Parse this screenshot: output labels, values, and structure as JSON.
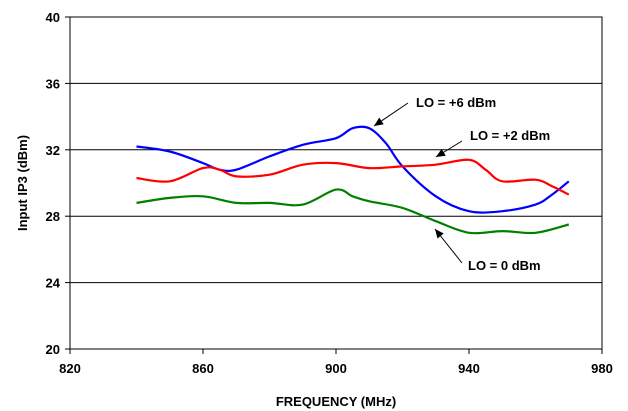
{
  "chart_data": {
    "type": "line",
    "xlabel": "FREQUENCY (MHz)",
    "ylabel": "Input IP3 (dBm)",
    "xlim": [
      820,
      980
    ],
    "ylim": [
      20,
      40
    ],
    "x_ticks": [
      "820",
      "860",
      "900",
      "940",
      "980"
    ],
    "y_ticks": [
      "20",
      "24",
      "28",
      "32",
      "36",
      "40"
    ],
    "grid": "horizontal",
    "series": [
      {
        "name": "LO = +6 dBm",
        "color": "#0000ff",
        "x": [
          840,
          850,
          860,
          865,
          870,
          880,
          890,
          900,
          905,
          910,
          915,
          920,
          930,
          940,
          950,
          960,
          965,
          970
        ],
        "y": [
          32.2,
          31.9,
          31.2,
          30.8,
          30.8,
          31.6,
          32.3,
          32.7,
          33.3,
          33.3,
          32.4,
          31.0,
          29.2,
          28.3,
          28.3,
          28.7,
          29.3,
          30.1
        ]
      },
      {
        "name": "LO = +2 dBm",
        "color": "#ff0000",
        "x": [
          840,
          850,
          860,
          865,
          870,
          880,
          890,
          900,
          910,
          920,
          930,
          940,
          945,
          950,
          960,
          965,
          970
        ],
        "y": [
          30.3,
          30.1,
          30.9,
          30.8,
          30.4,
          30.5,
          31.1,
          31.2,
          30.9,
          31.0,
          31.1,
          31.4,
          30.8,
          30.1,
          30.2,
          29.8,
          29.3
        ]
      },
      {
        "name": "LO = 0 dBm",
        "color": "#008000",
        "x": [
          840,
          850,
          860,
          870,
          880,
          890,
          900,
          905,
          910,
          920,
          930,
          940,
          950,
          960,
          970
        ],
        "y": [
          28.8,
          29.1,
          29.2,
          28.8,
          28.8,
          28.7,
          29.6,
          29.2,
          28.9,
          28.5,
          27.7,
          27.0,
          27.1,
          27.0,
          27.5
        ]
      }
    ],
    "annotations": [
      {
        "text": "LO = +6 dBm",
        "series": 0
      },
      {
        "text": "LO = +2 dBm",
        "series": 1
      },
      {
        "text": "LO = 0 dBm",
        "series": 2
      }
    ]
  }
}
